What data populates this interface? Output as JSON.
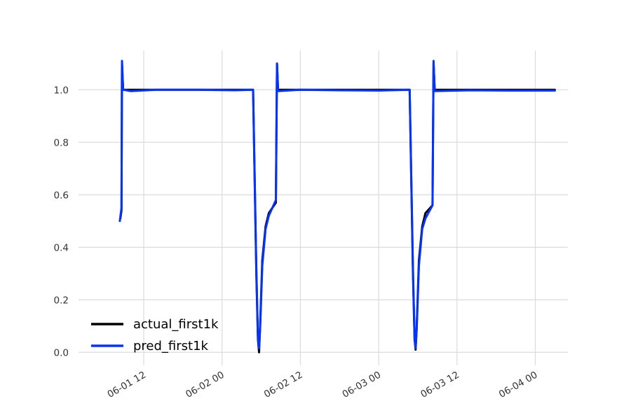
{
  "chart_data": {
    "type": "line",
    "title": "",
    "xlabel": "",
    "ylabel": "",
    "x_axis_kind": "datetime",
    "xlim": [
      "2016-06-01 02:00",
      "2016-06-04 05:00"
    ],
    "ylim": [
      -0.05,
      1.15
    ],
    "yticks": [
      0.0,
      0.2,
      0.4,
      0.6,
      0.8,
      1.0
    ],
    "ytick_labels": [
      "0.0",
      "0.2",
      "0.4",
      "0.6",
      "0.8",
      "1.0"
    ],
    "xticks": [
      "2016-06-01 12:00",
      "2016-06-02 00:00",
      "2016-06-02 12:00",
      "2016-06-03 00:00",
      "2016-06-03 12:00",
      "2016-06-04 00:00"
    ],
    "xtick_labels": [
      "06-01 12",
      "06-02 00",
      "06-02 12",
      "06-03 00",
      "06-03 12",
      "06-04 00"
    ],
    "grid": true,
    "legend_position": "lower-left",
    "series": [
      {
        "name": "actual_first1k",
        "color": "#000000",
        "points": [
          [
            "2016-06-01 08:25",
            0.51
          ],
          [
            "2016-06-01 08:35",
            0.54
          ],
          [
            "2016-06-01 08:40",
            1.1
          ],
          [
            "2016-06-01 08:50",
            1.0
          ],
          [
            "2016-06-02 04:45",
            1.0
          ],
          [
            "2016-06-02 05:15",
            0.3
          ],
          [
            "2016-06-02 05:30",
            0.05
          ],
          [
            "2016-06-02 05:40",
            0.0
          ],
          [
            "2016-06-02 05:50",
            0.1
          ],
          [
            "2016-06-02 06:10",
            0.35
          ],
          [
            "2016-06-02 06:40",
            0.48
          ],
          [
            "2016-06-02 07:10",
            0.53
          ],
          [
            "2016-06-02 08:15",
            0.57
          ],
          [
            "2016-06-02 08:25",
            1.1
          ],
          [
            "2016-06-02 08:35",
            1.0
          ],
          [
            "2016-06-03 04:45",
            1.0
          ],
          [
            "2016-06-03 05:15",
            0.3
          ],
          [
            "2016-06-03 05:30",
            0.05
          ],
          [
            "2016-06-03 05:40",
            0.01
          ],
          [
            "2016-06-03 05:50",
            0.1
          ],
          [
            "2016-06-03 06:10",
            0.35
          ],
          [
            "2016-06-03 06:40",
            0.48
          ],
          [
            "2016-06-03 07:10",
            0.53
          ],
          [
            "2016-06-03 08:15",
            0.56
          ],
          [
            "2016-06-03 08:25",
            1.1
          ],
          [
            "2016-06-03 08:35",
            1.0
          ],
          [
            "2016-06-04 03:00",
            1.0
          ]
        ]
      },
      {
        "name": "pred_first1k",
        "color": "#0433ff",
        "points": [
          [
            "2016-06-01 08:20",
            0.5
          ],
          [
            "2016-06-01 08:35",
            0.55
          ],
          [
            "2016-06-01 08:40",
            1.11
          ],
          [
            "2016-06-01 08:50",
            1.0
          ],
          [
            "2016-06-01 10:00",
            0.995
          ],
          [
            "2016-06-01 14:00",
            1.0
          ],
          [
            "2016-06-01 20:00",
            1.0
          ],
          [
            "2016-06-02 02:00",
            0.998
          ],
          [
            "2016-06-02 04:45",
            1.0
          ],
          [
            "2016-06-02 05:15",
            0.32
          ],
          [
            "2016-06-02 05:30",
            0.06
          ],
          [
            "2016-06-02 05:40",
            0.015
          ],
          [
            "2016-06-02 05:50",
            0.09
          ],
          [
            "2016-06-02 06:10",
            0.33
          ],
          [
            "2016-06-02 06:40",
            0.47
          ],
          [
            "2016-06-02 07:10",
            0.52
          ],
          [
            "2016-06-02 08:15",
            0.58
          ],
          [
            "2016-06-02 08:25",
            1.1
          ],
          [
            "2016-06-02 08:35",
            0.995
          ],
          [
            "2016-06-02 12:00",
            1.0
          ],
          [
            "2016-06-02 18:00",
            0.998
          ],
          [
            "2016-06-03 00:00",
            0.997
          ],
          [
            "2016-06-03 04:45",
            1.0
          ],
          [
            "2016-06-03 05:15",
            0.32
          ],
          [
            "2016-06-03 05:30",
            0.06
          ],
          [
            "2016-06-03 05:40",
            0.015
          ],
          [
            "2016-06-03 05:50",
            0.09
          ],
          [
            "2016-06-03 06:10",
            0.33
          ],
          [
            "2016-06-03 06:40",
            0.47
          ],
          [
            "2016-06-03 07:10",
            0.51
          ],
          [
            "2016-06-03 08:15",
            0.56
          ],
          [
            "2016-06-03 08:25",
            1.11
          ],
          [
            "2016-06-03 08:35",
            0.995
          ],
          [
            "2016-06-03 14:00",
            0.998
          ],
          [
            "2016-06-03 20:00",
            0.997
          ],
          [
            "2016-06-04 03:00",
            0.997
          ]
        ]
      }
    ]
  }
}
